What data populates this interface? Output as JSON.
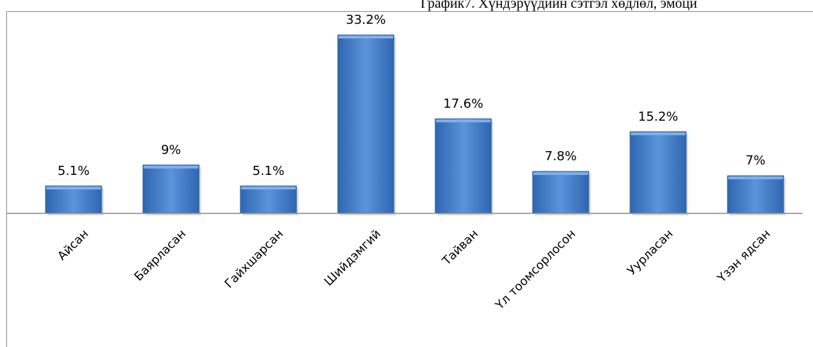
{
  "header": {
    "title": "График7. Хүндэрүүдийн сэтгэл хөдлөл, эмоци"
  },
  "chart_data": {
    "type": "bar",
    "title": "",
    "xlabel": "",
    "ylabel": "",
    "categories": [
      "Айсан",
      "Баярласан",
      "Гайхшарсан",
      "Шийдэмгий",
      "Тайван",
      "Үл тоомсорлосон",
      "Уурласан",
      "Үзэн ядсан"
    ],
    "values": [
      5.1,
      9,
      5.1,
      33.2,
      17.6,
      7.8,
      15.2,
      7
    ],
    "value_labels": [
      "5.1%",
      "9%",
      "5.1%",
      "33.2%",
      "17.6%",
      "7.8%",
      "15.2%",
      "7%"
    ],
    "ylim": [
      0,
      33.2
    ],
    "grid": false,
    "legend": "none",
    "bar_color": "#4a86d0",
    "bar_color_dark": "#2d5fa4"
  }
}
